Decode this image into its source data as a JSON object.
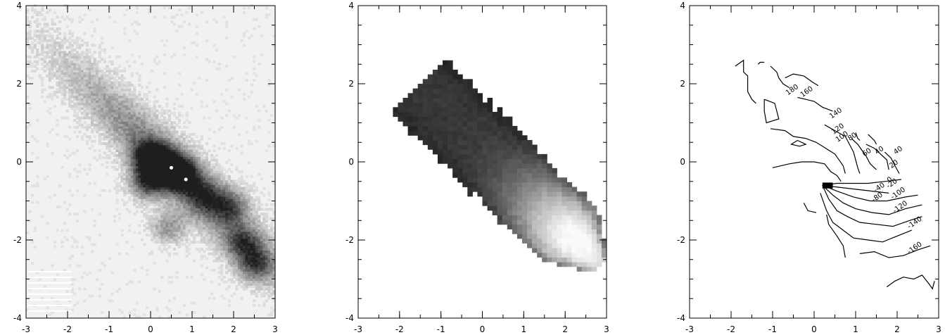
{
  "chart_data": [
    {
      "type": "heatmap",
      "panel": "left",
      "xlim": [
        -3,
        3
      ],
      "ylim": [
        -4,
        4
      ],
      "xticks": [
        -3,
        -2,
        -1,
        0,
        1,
        2,
        3
      ],
      "yticks": [
        -4,
        -2,
        0,
        2,
        4
      ],
      "xtick_labels": [
        "-3",
        "-2",
        "-1",
        "0",
        "1",
        "2",
        "3"
      ],
      "ytick_labels": [
        "-4",
        "-2",
        "0",
        "2",
        "4"
      ],
      "colormap": "grayscale-inverted",
      "bright_points": [
        [
          0.5,
          -0.15
        ],
        [
          0.85,
          -0.45
        ]
      ]
    },
    {
      "type": "heatmap",
      "panel": "middle",
      "xlim": [
        -3,
        3
      ],
      "ylim": [
        -4,
        4
      ],
      "xticks": [
        -3,
        -2,
        -1,
        0,
        1,
        2,
        3
      ],
      "yticks": [
        -4,
        -2,
        0,
        2,
        4
      ],
      "xtick_labels": [
        "-3",
        "-2",
        "-1",
        "0",
        "1",
        "2",
        "3"
      ],
      "ytick_labels": [
        "-4",
        "-2",
        "0",
        "2",
        "4"
      ],
      "colormap": "grayscale",
      "peak": [
        2.3,
        -2.0
      ]
    },
    {
      "type": "contour",
      "panel": "right",
      "xlim": [
        -3,
        3
      ],
      "ylim": [
        -4,
        4
      ],
      "xticks": [
        -3,
        -2,
        -1,
        0,
        1,
        2,
        3
      ],
      "yticks": [
        -4,
        -2,
        0,
        2,
        4
      ],
      "xtick_labels": [
        "-3",
        "-2",
        "-1",
        "0",
        "1",
        "2",
        "3"
      ],
      "ytick_labels": [
        "-4",
        "-2",
        "0",
        "2",
        "4"
      ],
      "contour_labels": [
        {
          "text": "180",
          "x": -0.5,
          "y": 1.8
        },
        {
          "text": "160",
          "x": -0.15,
          "y": 1.75
        },
        {
          "text": "140",
          "x": 0.55,
          "y": 1.2
        },
        {
          "text": "120",
          "x": 0.6,
          "y": 0.8
        },
        {
          "text": "100",
          "x": 0.7,
          "y": 0.6
        },
        {
          "text": "80",
          "x": 0.95,
          "y": 0.6
        },
        {
          "text": "60",
          "x": 1.3,
          "y": 0.2
        },
        {
          "text": "40",
          "x": 1.6,
          "y": 0.25
        },
        {
          "text": "40",
          "x": 2.05,
          "y": 0.25
        },
        {
          "text": "20",
          "x": 1.95,
          "y": -0.1
        },
        {
          "text": "0",
          "x": 1.85,
          "y": -0.5
        },
        {
          "text": "-20",
          "x": 1.9,
          "y": -0.6
        },
        {
          "text": "-40",
          "x": 1.6,
          "y": -0.7
        },
        {
          "text": "-80",
          "x": 1.55,
          "y": -0.95
        },
        {
          "text": "-100",
          "x": 2.05,
          "y": -0.85
        },
        {
          "text": "-120",
          "x": 2.1,
          "y": -1.2
        },
        {
          "text": "-140",
          "x": 2.45,
          "y": -1.6
        },
        {
          "text": "-160",
          "x": 2.45,
          "y": -2.25
        }
      ],
      "lines": [
        [
          [
            -1.9,
            2.45
          ],
          [
            -1.7,
            2.6
          ],
          [
            -1.7,
            2.3
          ],
          [
            -1.6,
            2.2
          ],
          [
            -1.6,
            1.8
          ],
          [
            -1.5,
            1.6
          ],
          [
            -1.4,
            1.5
          ]
        ],
        [
          [
            -1.35,
            2.5
          ],
          [
            -1.3,
            2.55
          ],
          [
            -1.2,
            2.55
          ]
        ],
        [
          [
            -1.05,
            2.45
          ],
          [
            -0.9,
            2.3
          ],
          [
            -0.85,
            2.15
          ],
          [
            -0.75,
            2.0
          ],
          [
            -0.6,
            1.9
          ]
        ],
        [
          [
            -0.7,
            2.15
          ],
          [
            -0.5,
            2.25
          ],
          [
            -0.25,
            2.2
          ],
          [
            -0.05,
            2.05
          ],
          [
            0.1,
            1.95
          ]
        ],
        [
          [
            -1.2,
            1.6
          ],
          [
            -0.95,
            1.5
          ],
          [
            -0.9,
            1.3
          ],
          [
            -0.85,
            1.1
          ],
          [
            -1.15,
            1.0
          ],
          [
            -1.2,
            1.3
          ],
          [
            -1.2,
            1.6
          ]
        ],
        [
          [
            -0.4,
            1.65
          ],
          [
            -0.2,
            1.6
          ],
          [
            0.0,
            1.55
          ],
          [
            0.2,
            1.4
          ],
          [
            0.45,
            1.3
          ]
        ],
        [
          [
            -1.05,
            0.85
          ],
          [
            -0.7,
            0.8
          ],
          [
            -0.5,
            0.65
          ],
          [
            -0.2,
            0.6
          ],
          [
            0.05,
            0.5
          ],
          [
            0.2,
            0.4
          ],
          [
            0.35,
            0.3
          ],
          [
            0.5,
            0.2
          ],
          [
            0.6,
            0.05
          ],
          [
            0.7,
            -0.1
          ],
          [
            0.75,
            -0.3
          ]
        ],
        [
          [
            -0.4,
            0.55
          ],
          [
            -0.2,
            0.45
          ],
          [
            -0.35,
            0.4
          ],
          [
            -0.55,
            0.45
          ],
          [
            -0.4,
            0.55
          ]
        ],
        [
          [
            0.25,
            0.95
          ],
          [
            0.5,
            0.8
          ],
          [
            0.75,
            0.65
          ],
          [
            0.85,
            0.45
          ],
          [
            0.95,
            0.25
          ],
          [
            1.0,
            0.05
          ],
          [
            1.05,
            -0.15
          ],
          [
            1.1,
            -0.3
          ]
        ],
        [
          [
            -1.0,
            -0.15
          ],
          [
            -0.6,
            -0.05
          ],
          [
            -0.3,
            0.0
          ],
          [
            0.0,
            0.0
          ],
          [
            0.25,
            -0.05
          ],
          [
            0.4,
            -0.25
          ],
          [
            0.55,
            -0.35
          ],
          [
            0.65,
            -0.5
          ]
        ],
        [
          [
            0.9,
            0.6
          ],
          [
            1.05,
            0.45
          ],
          [
            1.15,
            0.3
          ],
          [
            1.25,
            0.15
          ],
          [
            1.35,
            -0.05
          ],
          [
            1.5,
            -0.2
          ]
        ],
        [
          [
            1.0,
            0.75
          ],
          [
            1.05,
            0.6
          ],
          [
            1.1,
            0.55
          ]
        ],
        [
          [
            1.3,
            0.7
          ],
          [
            1.45,
            0.55
          ],
          [
            1.5,
            0.45
          ]
        ],
        [
          [
            1.25,
            0.45
          ],
          [
            1.45,
            0.35
          ],
          [
            1.6,
            0.2
          ],
          [
            1.75,
            0.05
          ],
          [
            1.8,
            -0.2
          ]
        ],
        [
          [
            1.7,
            0.25
          ],
          [
            1.85,
            0.1
          ],
          [
            1.95,
            -0.1
          ],
          [
            2.05,
            -0.3
          ]
        ],
        [
          [
            -0.25,
            -1.05
          ],
          [
            -0.15,
            -1.25
          ],
          [
            0.05,
            -1.3
          ]
        ],
        [
          [
            0.2,
            -0.6
          ],
          [
            0.55,
            -0.55
          ],
          [
            0.9,
            -0.55
          ],
          [
            1.3,
            -0.55
          ],
          [
            1.7,
            -0.5
          ],
          [
            2.1,
            -0.45
          ]
        ],
        [
          [
            0.2,
            -0.6
          ],
          [
            0.6,
            -0.65
          ],
          [
            1.0,
            -0.7
          ],
          [
            1.4,
            -0.75
          ],
          [
            1.8,
            -0.8
          ]
        ],
        [
          [
            0.2,
            -0.6
          ],
          [
            0.55,
            -0.75
          ],
          [
            0.95,
            -0.9
          ],
          [
            1.35,
            -1.0
          ],
          [
            1.75,
            -1.0
          ],
          [
            2.2,
            -0.9
          ],
          [
            2.5,
            -0.85
          ]
        ],
        [
          [
            0.2,
            -0.6
          ],
          [
            0.45,
            -0.85
          ],
          [
            0.7,
            -1.05
          ],
          [
            1.0,
            -1.2
          ],
          [
            1.4,
            -1.3
          ],
          [
            1.8,
            -1.35
          ],
          [
            2.2,
            -1.2
          ],
          [
            2.6,
            -1.1
          ]
        ],
        [
          [
            0.2,
            -0.6
          ],
          [
            0.35,
            -0.95
          ],
          [
            0.55,
            -1.25
          ],
          [
            0.8,
            -1.4
          ],
          [
            1.1,
            -1.55
          ],
          [
            1.5,
            -1.6
          ],
          [
            1.9,
            -1.65
          ],
          [
            2.3,
            -1.5
          ],
          [
            2.6,
            -1.4
          ]
        ],
        [
          [
            0.15,
            -0.8
          ],
          [
            0.3,
            -1.25
          ],
          [
            0.45,
            -1.55
          ],
          [
            0.7,
            -1.75
          ],
          [
            0.95,
            -1.95
          ],
          [
            1.3,
            -2.0
          ],
          [
            1.65,
            -2.05
          ],
          [
            2.0,
            -1.9
          ],
          [
            2.35,
            -1.75
          ]
        ],
        [
          [
            0.3,
            -1.35
          ],
          [
            0.35,
            -1.6
          ],
          [
            0.55,
            -1.9
          ],
          [
            0.7,
            -2.15
          ],
          [
            0.75,
            -2.45
          ]
        ],
        [
          [
            1.1,
            -2.35
          ],
          [
            1.45,
            -2.3
          ],
          [
            1.8,
            -2.45
          ],
          [
            2.15,
            -2.4
          ],
          [
            2.5,
            -2.25
          ],
          [
            2.8,
            -2.15
          ]
        ],
        [
          [
            1.75,
            -3.2
          ],
          [
            1.95,
            -3.05
          ],
          [
            2.15,
            -2.95
          ],
          [
            2.4,
            -3.0
          ],
          [
            2.6,
            -2.9
          ],
          [
            2.75,
            -3.1
          ],
          [
            2.85,
            -3.25
          ],
          [
            2.9,
            -3.05
          ]
        ]
      ],
      "filled_block": {
        "x0": 0.2,
        "x1": 0.45,
        "y0": -0.68,
        "y1": -0.53
      }
    }
  ]
}
